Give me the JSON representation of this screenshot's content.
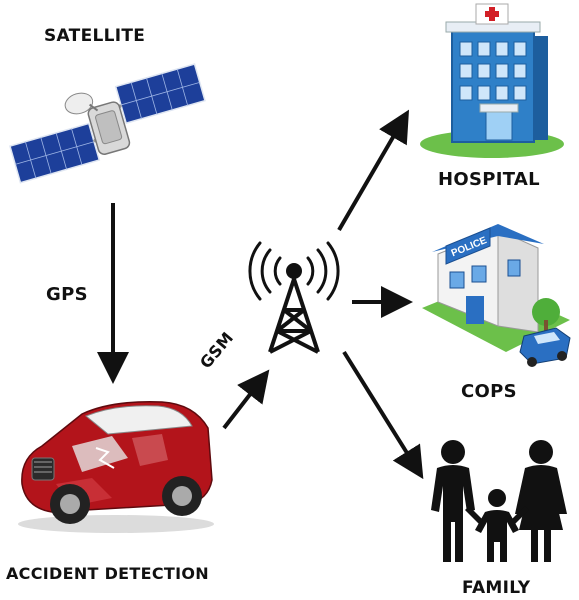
{
  "labels": {
    "satellite": "SATELLITE",
    "gps": "GPS",
    "gsm": "GSM",
    "accident_detection": "ACCIDENT DETECTION",
    "hospital": "HOSPITAL",
    "cops": "COPS",
    "family": "FAMILY"
  },
  "police_sign": "POLICE",
  "icons": {
    "satellite": "satellite-icon",
    "tower": "cell-tower-icon",
    "car": "crashed-car-icon",
    "hospital": "hospital-building-icon",
    "police": "police-station-icon",
    "family": "family-icon"
  },
  "colors": {
    "arrow": "#111111",
    "car_red": "#b3141b",
    "hospital_blue": "#2f80c8",
    "police_blue": "#2a6fc2",
    "grass": "#6cc04a"
  }
}
